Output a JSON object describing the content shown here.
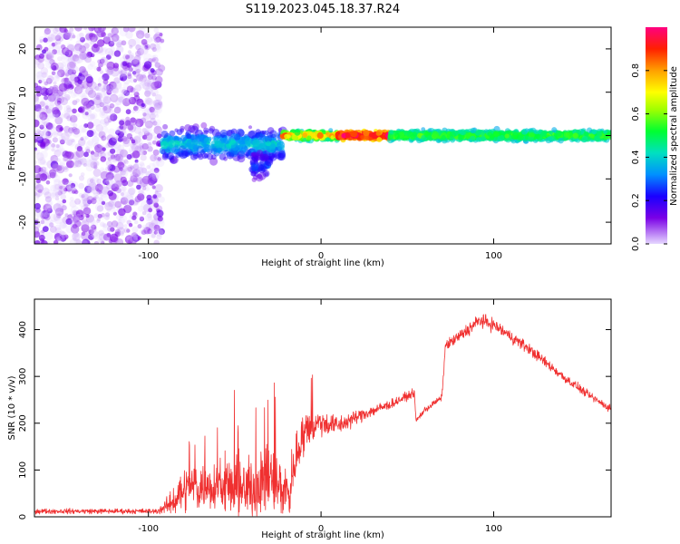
{
  "figure": {
    "title": "S119.2023.045.18.37.R24"
  },
  "chart_data": [
    {
      "type": "heatmap",
      "xlabel": "Height of straight line (km)",
      "ylabel": "Frequency (Hz)",
      "xlim": [
        -166,
        168
      ],
      "ylim": [
        -25,
        25
      ],
      "xticks": [
        -100,
        0,
        100
      ],
      "yticks": [
        -20,
        -10,
        0,
        10,
        20
      ],
      "grid": false,
      "colorbar": {
        "label": "Normalized spectral amplitude",
        "range": [
          0,
          1
        ],
        "ticks": [
          0.0,
          0.2,
          0.4,
          0.6,
          0.8
        ],
        "tick_labels": [
          "0.0",
          "0.2",
          "0.4",
          "0.6",
          "0.8"
        ],
        "colormap": "rainbow"
      },
      "regions": [
        {
          "x_range": [
            -166,
            -92
          ],
          "freq_range": [
            -25,
            25
          ],
          "amplitude": [
            0.0,
            0.15
          ],
          "pattern": "scattered noise"
        },
        {
          "x_range": [
            -92,
            -22
          ],
          "freq_center": -2,
          "freq_halfwidth": 5,
          "amplitude": [
            0.1,
            0.45
          ],
          "pattern": "irregular blobs"
        },
        {
          "x_range": [
            -40,
            -30
          ],
          "freq_center": -7,
          "freq_halfwidth": 4,
          "amplitude": [
            0.1,
            0.3
          ],
          "pattern": "downward tail"
        },
        {
          "x_range": [
            -22,
            10
          ],
          "freq_center": 0,
          "freq_halfwidth": 1.5,
          "amplitude": [
            0.3,
            0.9
          ],
          "pattern": "narrow line"
        },
        {
          "x_range": [
            10,
            40
          ],
          "freq_center": 0,
          "freq_halfwidth": 1.2,
          "amplitude": [
            0.7,
            1.0
          ],
          "pattern": "narrow line"
        },
        {
          "x_range": [
            40,
            168
          ],
          "freq_center": 0,
          "freq_halfwidth": 1.5,
          "amplitude": [
            0.35,
            0.6
          ],
          "pattern": "narrow line"
        }
      ]
    },
    {
      "type": "line",
      "xlabel": "Height of straight line (km)",
      "ylabel": "SNR (10 * v/v)",
      "xlim": [
        -166,
        168
      ],
      "ylim": [
        0,
        465
      ],
      "xticks": [
        -100,
        0,
        100
      ],
      "yticks": [
        0,
        100,
        200,
        300,
        400
      ],
      "grid": false,
      "series": [
        {
          "color": "#f03030",
          "envelope": [
            {
              "x": -166,
              "base": 12,
              "noise": 8
            },
            {
              "x": -95,
              "base": 12,
              "noise": 8
            },
            {
              "x": -88,
              "base": 25,
              "noise": 30
            },
            {
              "x": -80,
              "base": 60,
              "noise": 70
            },
            {
              "x": -60,
              "base": 70,
              "noise": 80
            },
            {
              "x": -45,
              "base": 55,
              "noise": 90
            },
            {
              "x": -30,
              "base": 80,
              "noise": 110
            },
            {
              "x": -18,
              "base": 50,
              "noise": 80
            },
            {
              "x": -14,
              "base": 140,
              "noise": 70
            },
            {
              "x": -8,
              "base": 190,
              "noise": 60
            },
            {
              "x": 0,
              "base": 200,
              "noise": 40
            },
            {
              "x": 10,
              "base": 195,
              "noise": 30
            },
            {
              "x": 25,
              "base": 220,
              "noise": 20
            },
            {
              "x": 40,
              "base": 240,
              "noise": 15
            },
            {
              "x": 54,
              "base": 265,
              "noise": 12
            },
            {
              "x": 55,
              "base": 205,
              "noise": 10
            },
            {
              "x": 60,
              "base": 228,
              "noise": 10
            },
            {
              "x": 70,
              "base": 255,
              "noise": 10
            },
            {
              "x": 72,
              "base": 365,
              "noise": 15
            },
            {
              "x": 80,
              "base": 385,
              "noise": 20
            },
            {
              "x": 92,
              "base": 420,
              "noise": 22
            },
            {
              "x": 100,
              "base": 410,
              "noise": 20
            },
            {
              "x": 120,
              "base": 360,
              "noise": 18
            },
            {
              "x": 140,
              "base": 300,
              "noise": 15
            },
            {
              "x": 155,
              "base": 260,
              "noise": 12
            },
            {
              "x": 168,
              "base": 230,
              "noise": 12
            }
          ]
        }
      ]
    }
  ]
}
